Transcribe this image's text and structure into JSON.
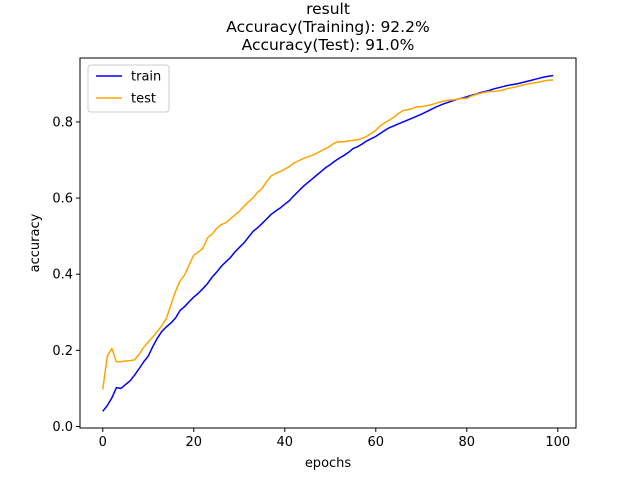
{
  "chart_data": {
    "type": "line",
    "title_lines": [
      "result",
      "Accuracy(Training): 92.2%",
      "Accuracy(Test): 91.0%"
    ],
    "xlabel": "epochs",
    "ylabel": "accuracy",
    "xlim": [
      -5,
      104
    ],
    "ylim": [
      -0.004,
      0.968
    ],
    "xticks": [
      0,
      20,
      40,
      60,
      80,
      100
    ],
    "xtick_labels": [
      "0",
      "20",
      "40",
      "60",
      "80",
      "100"
    ],
    "yticks": [
      0.0,
      0.2,
      0.4,
      0.6,
      0.8
    ],
    "ytick_labels": [
      "0.0",
      "0.2",
      "0.4",
      "0.6",
      "0.8"
    ],
    "legend_position": "top-left",
    "grid": false,
    "series": [
      {
        "name": "train",
        "color": "#0000ff",
        "values": [
          0.04,
          0.055,
          0.075,
          0.102,
          0.1,
          0.11,
          0.12,
          0.135,
          0.152,
          0.17,
          0.185,
          0.21,
          0.232,
          0.25,
          0.262,
          0.272,
          0.285,
          0.305,
          0.315,
          0.328,
          0.34,
          0.35,
          0.362,
          0.375,
          0.392,
          0.405,
          0.42,
          0.432,
          0.443,
          0.458,
          0.47,
          0.482,
          0.497,
          0.512,
          0.522,
          0.533,
          0.545,
          0.557,
          0.566,
          0.574,
          0.584,
          0.593,
          0.606,
          0.618,
          0.63,
          0.64,
          0.65,
          0.66,
          0.67,
          0.68,
          0.688,
          0.697,
          0.705,
          0.712,
          0.72,
          0.73,
          0.735,
          0.742,
          0.75,
          0.756,
          0.762,
          0.77,
          0.778,
          0.785,
          0.79,
          0.795,
          0.8,
          0.805,
          0.81,
          0.815,
          0.82,
          0.826,
          0.832,
          0.838,
          0.843,
          0.848,
          0.852,
          0.856,
          0.86,
          0.863,
          0.866,
          0.87,
          0.873,
          0.877,
          0.88,
          0.883,
          0.887,
          0.89,
          0.893,
          0.896,
          0.898,
          0.9,
          0.903,
          0.906,
          0.909,
          0.912,
          0.915,
          0.918,
          0.92,
          0.922
        ]
      },
      {
        "name": "test",
        "color": "#ffa500",
        "values": [
          0.097,
          0.185,
          0.205,
          0.17,
          0.17,
          0.172,
          0.173,
          0.175,
          0.19,
          0.208,
          0.222,
          0.235,
          0.25,
          0.265,
          0.285,
          0.32,
          0.355,
          0.383,
          0.398,
          0.425,
          0.45,
          0.458,
          0.468,
          0.495,
          0.505,
          0.52,
          0.53,
          0.535,
          0.545,
          0.555,
          0.565,
          0.578,
          0.59,
          0.6,
          0.615,
          0.625,
          0.643,
          0.658,
          0.665,
          0.67,
          0.676,
          0.683,
          0.692,
          0.698,
          0.703,
          0.708,
          0.712,
          0.718,
          0.724,
          0.73,
          0.737,
          0.745,
          0.748,
          0.748,
          0.75,
          0.752,
          0.753,
          0.757,
          0.762,
          0.77,
          0.778,
          0.79,
          0.798,
          0.805,
          0.813,
          0.822,
          0.83,
          0.832,
          0.835,
          0.84,
          0.84,
          0.842,
          0.845,
          0.848,
          0.852,
          0.855,
          0.857,
          0.858,
          0.86,
          0.862,
          0.862,
          0.868,
          0.872,
          0.875,
          0.878,
          0.88,
          0.88,
          0.882,
          0.884,
          0.888,
          0.89,
          0.893,
          0.896,
          0.899,
          0.901,
          0.903,
          0.905,
          0.908,
          0.91,
          0.91
        ]
      }
    ]
  }
}
